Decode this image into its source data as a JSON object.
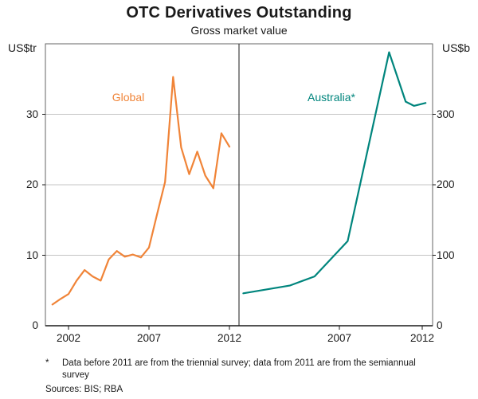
{
  "footnote": {
    "marker": "*",
    "text": "Data before 2011 are from the triennial survey; data from 2011 are from the semiannual survey"
  },
  "sources": "Sources: BIS; RBA",
  "colors": {
    "global_line": "#f08438",
    "australia_line": "#00857d",
    "grid": "#c4c4c4",
    "axis": "#1a1a1a",
    "box": "#666666"
  },
  "chart_data": {
    "type": "line",
    "title": "OTC Derivatives Outstanding",
    "subtitle": "Gross market value",
    "grid": true,
    "panels": [
      {
        "side": "left",
        "name": "Global",
        "y_axis_label": "US$tr",
        "ylim": [
          0,
          40
        ],
        "yticks": [
          "0",
          "10",
          "20",
          "30"
        ],
        "xticks": [
          "2002",
          "2007",
          "2012"
        ],
        "color": "#f08438",
        "x": [
          2001,
          2001.5,
          2002,
          2002.5,
          2003,
          2003.5,
          2004,
          2004.5,
          2005,
          2005.5,
          2006,
          2006.5,
          2007,
          2007.5,
          2008,
          2008.5,
          2009,
          2009.5,
          2010,
          2010.5,
          2011,
          2011.5,
          2012
        ],
        "values": [
          3.0,
          3.8,
          4.5,
          6.4,
          7.9,
          7.0,
          6.4,
          9.4,
          10.6,
          9.8,
          10.1,
          9.7,
          11.1,
          15.8,
          20.4,
          35.3,
          25.3,
          21.5,
          24.7,
          21.3,
          19.5,
          27.3,
          25.4
        ]
      },
      {
        "side": "right",
        "name": "Australia*",
        "y_axis_label": "US$b",
        "ylim": [
          0,
          400
        ],
        "yticks": [
          "0",
          "100",
          "200",
          "300"
        ],
        "xticks": [
          "2007",
          "2012"
        ],
        "color": "#00857d",
        "x": [
          2001.2,
          2004,
          2005.5,
          2007.5,
          2010,
          2011,
          2011.5,
          2012.2
        ],
        "values": [
          46,
          57,
          70,
          120,
          388,
          318,
          312,
          316
        ]
      }
    ]
  }
}
